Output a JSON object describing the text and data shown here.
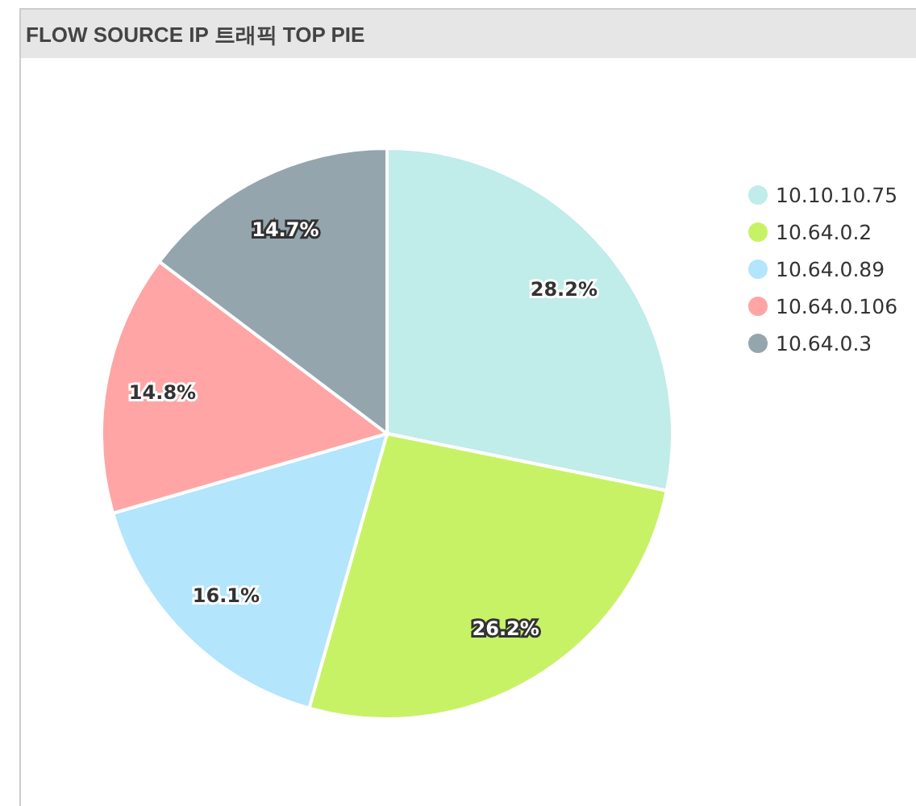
{
  "chart_data": {
    "type": "pie",
    "title": "FLOW SOURCE IP 트래픽 TOP PIE",
    "categories": [
      "10.10.10.75",
      "10.64.0.2",
      "10.64.0.89",
      "10.64.0.106",
      "10.64.0.3"
    ],
    "values": [
      28.2,
      26.2,
      16.1,
      14.8,
      14.7
    ],
    "colors": [
      "#c0ecea",
      "#c8f266",
      "#b3e5fc",
      "#ffa5a5",
      "#95a5ad"
    ],
    "value_labels": [
      "28.2%",
      "26.2%",
      "16.1%",
      "14.8%",
      "14.7%"
    ],
    "legend": "right"
  }
}
